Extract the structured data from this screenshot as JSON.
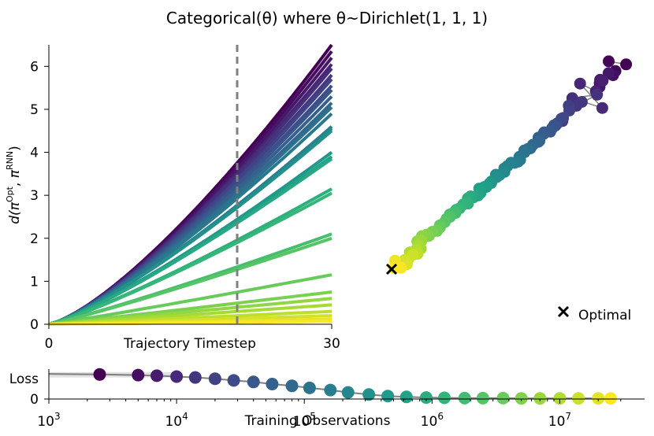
{
  "figure": {
    "title": "Categorical(θ) where θ~Dirichlet(1, 1, 1)"
  },
  "chart_data": [
    {
      "type": "line",
      "panel": "distance-vs-timestep",
      "xlabel": "Trajectory Timestep",
      "ylabel": "d(πOpt, πRNN)",
      "ylabel_parts": {
        "prefix": "d(",
        "pi1": "π",
        "sup1": "Opt",
        "sep": ", ",
        "pi2": "π",
        "sup2": "RNN",
        "suffix": ")"
      },
      "xlim": [
        0,
        30
      ],
      "ylim": [
        0,
        6.5
      ],
      "xticks": [
        "0",
        "30"
      ],
      "yticks": [
        "0",
        "1",
        "2",
        "3",
        "4",
        "5",
        "6"
      ],
      "vline_x": 20,
      "vline_style": "dashed-gray",
      "colormap": "viridis",
      "series_final_values": [
        6.5,
        6.35,
        6.2,
        6.05,
        5.95,
        5.8,
        5.7,
        5.55,
        5.45,
        5.3,
        5.15,
        5.05,
        4.9,
        4.6,
        4.55,
        4.5,
        4.0,
        3.9,
        3.85,
        3.15,
        3.05,
        2.1,
        2.0,
        1.15,
        0.75,
        0.6,
        0.45,
        0.3,
        0.2,
        0.12,
        0.07
      ]
    },
    {
      "type": "scatter",
      "panel": "embedding",
      "note_points_count": 90,
      "legend": [
        {
          "marker": "x",
          "label": "Optimal"
        }
      ],
      "legend_position": "bottom-right",
      "colormap": "viridis",
      "optimal_point": [
        0.0,
        0.0
      ]
    },
    {
      "type": "line",
      "panel": "training-loss",
      "xlabel": "Training Observations",
      "ylabel": "Loss",
      "xscale": "log",
      "xlim": [
        1000,
        30000000
      ],
      "xticks": [
        {
          "base": "10",
          "exp": "3"
        },
        {
          "base": "10",
          "exp": "4"
        },
        {
          "base": "10",
          "exp": "5"
        },
        {
          "base": "10",
          "exp": "6"
        },
        {
          "base": "10",
          "exp": "7"
        }
      ],
      "yticks": [
        "0"
      ],
      "x": [
        2500,
        5000,
        7000,
        10000,
        14000,
        20000,
        28000,
        40000,
        56000,
        80000,
        110000,
        160000,
        220000,
        320000,
        450000,
        630000,
        900000,
        1250000,
        1800000,
        2500000,
        3600000,
        5000000,
        7000000,
        10000000,
        14000000,
        20000000,
        25000000
      ],
      "y": [
        0.82,
        0.8,
        0.78,
        0.75,
        0.72,
        0.68,
        0.62,
        0.57,
        0.5,
        0.44,
        0.37,
        0.3,
        0.22,
        0.15,
        0.1,
        0.07,
        0.05,
        0.04,
        0.03,
        0.03,
        0.03,
        0.02,
        0.02,
        0.02,
        0.02,
        0.02,
        0.02
      ]
    }
  ]
}
